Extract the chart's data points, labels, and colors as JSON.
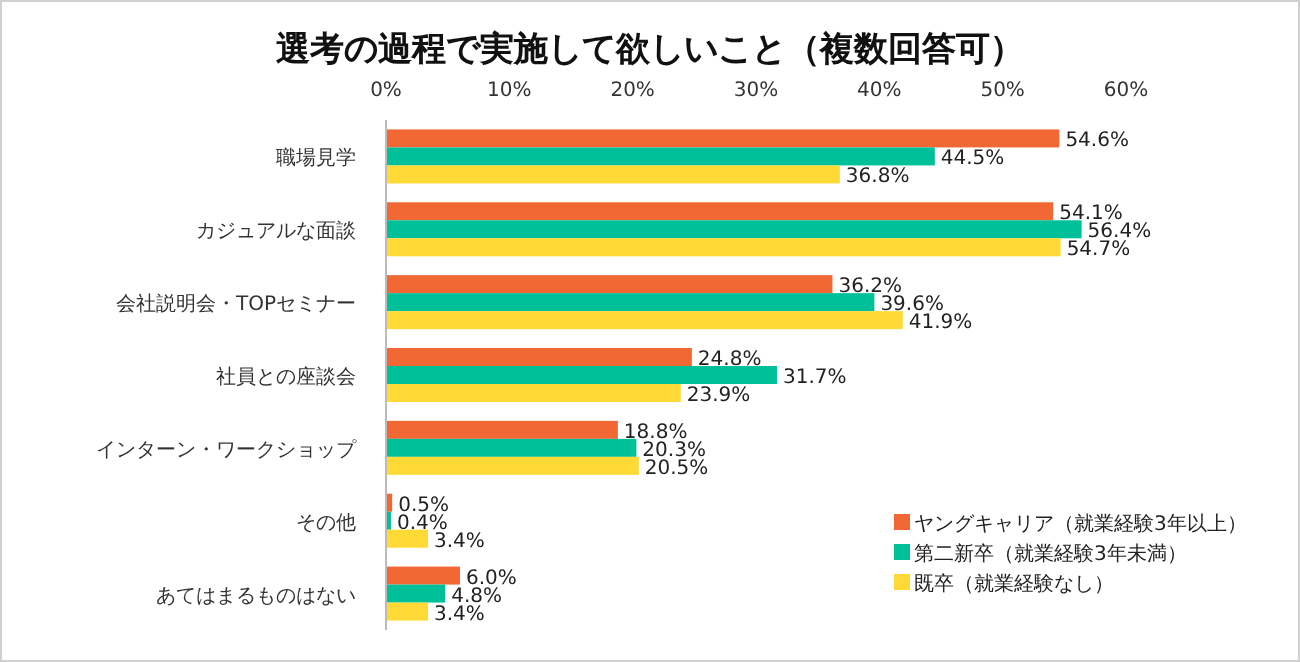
{
  "chart_data": {
    "type": "bar",
    "orientation": "horizontal",
    "title": "選考の過程で実施して欲しいこと（複数回答可）",
    "categories": [
      "職場見学",
      "カジュアルな面談",
      "会社説明会・TOPセミナー",
      "社員との座談会",
      "インターン・ワークショップ",
      "その他",
      "あてはまるものはない"
    ],
    "xlim": [
      0,
      60
    ],
    "xticks": [
      {
        "value": 0,
        "label": "0%"
      },
      {
        "value": 10,
        "label": "10%"
      },
      {
        "value": 20,
        "label": "20%"
      },
      {
        "value": 30,
        "label": "30%"
      },
      {
        "value": 40,
        "label": "40%"
      },
      {
        "value": 50,
        "label": "50%"
      },
      {
        "value": 60,
        "label": "60%"
      }
    ],
    "series": [
      {
        "name": "ヤングキャリア（就業経験3年以上）",
        "color": "#f26835",
        "values": [
          54.6,
          54.1,
          36.2,
          24.8,
          18.8,
          0.5,
          6.0
        ],
        "value_labels": [
          "54.6%",
          "54.1%",
          "36.2%",
          "24.8%",
          "18.8%",
          "0.5%",
          "6.0%"
        ]
      },
      {
        "name": "第二新卒（就業経験3年未満）",
        "color": "#00c09a",
        "values": [
          44.5,
          56.4,
          39.6,
          31.7,
          20.3,
          0.4,
          4.8
        ],
        "value_labels": [
          "44.5%",
          "56.4%",
          "39.6%",
          "31.7%",
          "20.3%",
          "0.4%",
          "4.8%"
        ]
      },
      {
        "name": "既卒（就業経験なし）",
        "color": "#ffd935",
        "values": [
          36.8,
          54.7,
          41.9,
          23.9,
          20.5,
          3.4,
          3.4
        ],
        "value_labels": [
          "36.8%",
          "54.7%",
          "41.9%",
          "23.9%",
          "20.5%",
          "3.4%",
          "3.4%"
        ]
      }
    ],
    "legend": "bottom right",
    "grid": false
  }
}
